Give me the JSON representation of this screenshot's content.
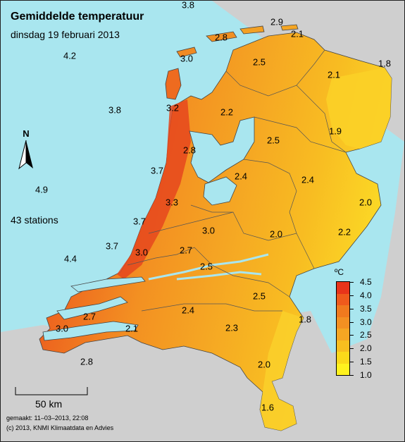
{
  "title": "Gemiddelde temperatuur",
  "subtitle": "dinsdag 19 februari 2013",
  "station_count_label": "43 stations",
  "north_label": "N",
  "scale_label": "50 km",
  "footer": {
    "made": "gemaakt: 11–03–2013, 22:08",
    "copyright": "(c) 2013, KNMI Klimaatdata en Advies"
  },
  "legend": {
    "unit": "ºC",
    "ticks": [
      "4.5",
      "4.0",
      "3.5",
      "3.0",
      "2.5",
      "2.0",
      "1.5",
      "1.0"
    ],
    "colors": [
      "#e8341a",
      "#ef5a1c",
      "#f07a1e",
      "#f39022",
      "#f5a623",
      "#f8bf1f",
      "#fbd91a",
      "#fff21e"
    ]
  },
  "colors": {
    "sea": "#a9e6ef",
    "neighbour_land": "#cfcfcf",
    "coast_warm": "#ea5a1f",
    "inland": "#f5a623",
    "east_cool": "#f9cf28"
  },
  "labels": [
    {
      "id": "v1",
      "text": "3.8"
    },
    {
      "id": "v2",
      "text": "2.9"
    },
    {
      "id": "v3",
      "text": "2.8"
    },
    {
      "id": "v4",
      "text": "2.1"
    },
    {
      "id": "v5",
      "text": "4.2"
    },
    {
      "id": "v6",
      "text": "3.0"
    },
    {
      "id": "v7",
      "text": "2.5"
    },
    {
      "id": "v8",
      "text": "1.8"
    },
    {
      "id": "v9",
      "text": "2.1"
    },
    {
      "id": "v10",
      "text": "3.8"
    },
    {
      "id": "v11",
      "text": "3.2"
    },
    {
      "id": "v12",
      "text": "2.2"
    },
    {
      "id": "v13",
      "text": "1.9"
    },
    {
      "id": "v14",
      "text": "2.5"
    },
    {
      "id": "v15",
      "text": "2.8"
    },
    {
      "id": "v16",
      "text": "3.7"
    },
    {
      "id": "v17",
      "text": "2.4"
    },
    {
      "id": "v18",
      "text": "2.4"
    },
    {
      "id": "v19",
      "text": "4.9"
    },
    {
      "id": "v20",
      "text": "3.3"
    },
    {
      "id": "v21",
      "text": "2.0"
    },
    {
      "id": "v22",
      "text": "3.7"
    },
    {
      "id": "v23",
      "text": "3.0"
    },
    {
      "id": "v24",
      "text": "2.0"
    },
    {
      "id": "v25",
      "text": "2.2"
    },
    {
      "id": "v26",
      "text": "3.7"
    },
    {
      "id": "v27",
      "text": "3.0"
    },
    {
      "id": "v28",
      "text": "2.7"
    },
    {
      "id": "v29",
      "text": "4.4"
    },
    {
      "id": "v30",
      "text": "2.5"
    },
    {
      "id": "v31",
      "text": "2.5"
    },
    {
      "id": "v32",
      "text": "2.7"
    },
    {
      "id": "v33",
      "text": "2.4"
    },
    {
      "id": "v34",
      "text": "1.8"
    },
    {
      "id": "v35",
      "text": "3.0"
    },
    {
      "id": "v36",
      "text": "2.1"
    },
    {
      "id": "v37",
      "text": "2.3"
    },
    {
      "id": "v38",
      "text": "2.8"
    },
    {
      "id": "v39",
      "text": "2.0"
    },
    {
      "id": "v40",
      "text": "1.6"
    }
  ]
}
